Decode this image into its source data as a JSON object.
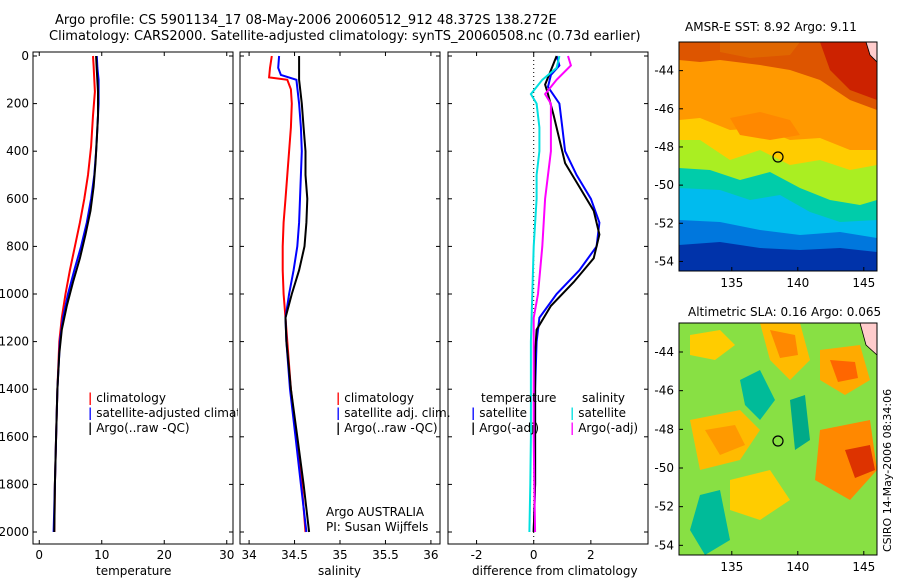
{
  "header": {
    "line1": "Argo profile: CS 5901134_17 08-May-2006 20060512_912 48.372S 138.272E",
    "line2": "Climatology: CARS2000. Satellite-adjusted climatology: synTS_20060508.nc (0.73d earlier)"
  },
  "credit": "CSIRO 14-May-2006 08:34:06",
  "chart_data": [
    {
      "type": "line",
      "xlabel": "temperature",
      "ylabel": "",
      "xlim": [
        -1,
        31
      ],
      "ylim": [
        2000,
        0
      ],
      "xticks": [
        0,
        10,
        20,
        30
      ],
      "yticks": [
        0,
        200,
        400,
        600,
        800,
        1000,
        1200,
        1400,
        1600,
        1800,
        2000
      ],
      "legend": [
        "climatology",
        "satellite-adjusted climatology",
        "Argo(..raw -QC)"
      ],
      "series": [
        {
          "name": "climatology",
          "color": "#ff0000",
          "points": [
            [
              8.6,
              0
            ],
            [
              8.7,
              40
            ],
            [
              8.8,
              100
            ],
            [
              8.9,
              150
            ],
            [
              8.6,
              250
            ],
            [
              8.3,
              380
            ],
            [
              7.8,
              500
            ],
            [
              7.2,
              600
            ],
            [
              6.5,
              700
            ],
            [
              5.7,
              800
            ],
            [
              4.9,
              900
            ],
            [
              4.2,
              1000
            ],
            [
              3.6,
              1100
            ],
            [
              3.2,
              1200
            ],
            [
              2.9,
              1400
            ],
            [
              2.7,
              1600
            ],
            [
              2.5,
              1800
            ],
            [
              2.4,
              2000
            ]
          ]
        },
        {
          "name": "satellite-adjusted climatology",
          "color": "#0000ff",
          "points": [
            [
              9.2,
              0
            ],
            [
              9.3,
              50
            ],
            [
              9.5,
              100
            ],
            [
              9.5,
              200
            ],
            [
              9.3,
              300
            ],
            [
              9.1,
              400
            ],
            [
              8.8,
              500
            ],
            [
              8.3,
              600
            ],
            [
              7.6,
              700
            ],
            [
              6.7,
              800
            ],
            [
              5.6,
              900
            ],
            [
              4.6,
              1000
            ],
            [
              3.8,
              1100
            ],
            [
              3.3,
              1200
            ],
            [
              2.9,
              1400
            ],
            [
              2.7,
              1600
            ],
            [
              2.5,
              1800
            ],
            [
              2.3,
              2000
            ]
          ]
        },
        {
          "name": "Argo(..raw -QC)",
          "color": "#000000",
          "points": [
            [
              9.1,
              0
            ],
            [
              9.2,
              60
            ],
            [
              9.4,
              150
            ],
            [
              9.4,
              250
            ],
            [
              9.2,
              350
            ],
            [
              9.0,
              450
            ],
            [
              8.7,
              550
            ],
            [
              8.2,
              650
            ],
            [
              7.4,
              750
            ],
            [
              6.5,
              850
            ],
            [
              5.4,
              950
            ],
            [
              4.4,
              1050
            ],
            [
              3.6,
              1150
            ],
            [
              3.2,
              1250
            ],
            [
              2.9,
              1400
            ],
            [
              2.7,
              1600
            ],
            [
              2.5,
              1800
            ],
            [
              2.4,
              2000
            ]
          ]
        }
      ]
    },
    {
      "type": "line",
      "xlabel": "salinity",
      "ylabel": "",
      "xlim": [
        33.9,
        36.1
      ],
      "ylim": [
        2000,
        0
      ],
      "xticks": [
        34,
        34.5,
        35,
        35.5,
        36
      ],
      "xticklabels": [
        "34",
        "34.5",
        "35",
        "35.5",
        "36"
      ],
      "legend": [
        "climatology",
        "satellite adj. clim.",
        "Argo(..raw -QC)"
      ],
      "annotation": [
        "Argo AUSTRALIA",
        "PI: Susan Wijffels"
      ],
      "series": [
        {
          "name": "climatology",
          "color": "#ff0000",
          "points": [
            [
              34.25,
              0
            ],
            [
              34.23,
              50
            ],
            [
              34.22,
              90
            ],
            [
              34.42,
              100
            ],
            [
              34.46,
              140
            ],
            [
              34.47,
              200
            ],
            [
              34.46,
              300
            ],
            [
              34.44,
              400
            ],
            [
              34.42,
              500
            ],
            [
              34.4,
              600
            ],
            [
              34.38,
              700
            ],
            [
              34.37,
              800
            ],
            [
              34.37,
              900
            ],
            [
              34.38,
              1000
            ],
            [
              34.4,
              1100
            ],
            [
              34.42,
              1200
            ],
            [
              34.46,
              1400
            ],
            [
              34.52,
              1600
            ],
            [
              34.58,
              1800
            ],
            [
              34.62,
              2000
            ]
          ]
        },
        {
          "name": "satellite adj. clim.",
          "color": "#0000ff",
          "points": [
            [
              34.33,
              0
            ],
            [
              34.32,
              50
            ],
            [
              34.35,
              80
            ],
            [
              34.52,
              100
            ],
            [
              34.55,
              200
            ],
            [
              34.57,
              300
            ],
            [
              34.58,
              400
            ],
            [
              34.57,
              500
            ],
            [
              34.56,
              600
            ],
            [
              34.55,
              700
            ],
            [
              34.53,
              800
            ],
            [
              34.49,
              900
            ],
            [
              34.44,
              1000
            ],
            [
              34.4,
              1100
            ],
            [
              34.41,
              1200
            ],
            [
              34.45,
              1400
            ],
            [
              34.51,
              1600
            ],
            [
              34.57,
              1800
            ],
            [
              34.63,
              2000
            ]
          ]
        },
        {
          "name": "Argo(..raw -QC)",
          "color": "#000000",
          "points": [
            [
              34.55,
              0
            ],
            [
              34.55,
              100
            ],
            [
              34.58,
              200
            ],
            [
              34.6,
              300
            ],
            [
              34.62,
              400
            ],
            [
              34.62,
              500
            ],
            [
              34.64,
              600
            ],
            [
              34.63,
              700
            ],
            [
              34.61,
              800
            ],
            [
              34.55,
              900
            ],
            [
              34.47,
              1000
            ],
            [
              34.4,
              1100
            ],
            [
              34.41,
              1200
            ],
            [
              34.46,
              1400
            ],
            [
              34.53,
              1600
            ],
            [
              34.6,
              1800
            ],
            [
              34.66,
              2000
            ]
          ]
        }
      ]
    },
    {
      "type": "line",
      "xlabel": "difference from climatology",
      "ylabel": "",
      "xlim": [
        -3,
        4
      ],
      "ylim": [
        2000,
        0
      ],
      "xticks": [
        -2,
        0,
        2
      ],
      "legend": {
        "temperature": [
          "satellite",
          "Argo(-adj)"
        ],
        "salinity": [
          "satellite",
          "Argo(-adj)"
        ]
      },
      "legend_headers": [
        "temperature",
        "salinity"
      ],
      "series": [
        {
          "name": "temperature satellite",
          "color": "#0000ff",
          "points": [
            [
              0.8,
              0
            ],
            [
              0.9,
              40
            ],
            [
              0.6,
              80
            ],
            [
              0.5,
              130
            ],
            [
              0.9,
              200
            ],
            [
              1.0,
              300
            ],
            [
              1.1,
              400
            ],
            [
              1.5,
              500
            ],
            [
              2.0,
              600
            ],
            [
              2.3,
              700
            ],
            [
              2.2,
              800
            ],
            [
              1.6,
              900
            ],
            [
              0.8,
              1000
            ],
            [
              0.2,
              1100
            ],
            [
              0.1,
              1200
            ],
            [
              0.05,
              1400
            ],
            [
              0.05,
              1600
            ],
            [
              0.05,
              1800
            ],
            [
              0.0,
              2000
            ]
          ]
        },
        {
          "name": "temperature Argo(-adj)",
          "color": "#000000",
          "points": [
            [
              0.8,
              0
            ],
            [
              0.6,
              60
            ],
            [
              0.4,
              120
            ],
            [
              0.5,
              160
            ],
            [
              0.7,
              250
            ],
            [
              0.9,
              350
            ],
            [
              1.1,
              450
            ],
            [
              1.6,
              550
            ],
            [
              2.1,
              650
            ],
            [
              2.3,
              750
            ],
            [
              2.1,
              850
            ],
            [
              1.4,
              950
            ],
            [
              0.6,
              1050
            ],
            [
              0.1,
              1150
            ],
            [
              0.05,
              1250
            ],
            [
              0.05,
              1400
            ],
            [
              0.05,
              1600
            ],
            [
              0.05,
              1800
            ],
            [
              0.0,
              2000
            ]
          ]
        },
        {
          "name": "salinity satellite",
          "color": "#00e0e0",
          "points": [
            [
              0.9,
              0
            ],
            [
              0.8,
              50
            ],
            [
              0.3,
              100
            ],
            [
              -0.1,
              160
            ],
            [
              0.1,
              200
            ],
            [
              0.2,
              300
            ],
            [
              0.2,
              400
            ],
            [
              0.1,
              500
            ],
            [
              0.1,
              600
            ],
            [
              0.0,
              800
            ],
            [
              -0.05,
              1000
            ],
            [
              -0.1,
              1200
            ],
            [
              -0.1,
              1400
            ],
            [
              -0.1,
              1600
            ],
            [
              -0.12,
              1800
            ],
            [
              -0.15,
              2000
            ]
          ]
        },
        {
          "name": "salinity Argo(-adj)",
          "color": "#ff00ff",
          "points": [
            [
              1.2,
              0
            ],
            [
              1.3,
              40
            ],
            [
              0.8,
              100
            ],
            [
              0.4,
              160
            ],
            [
              0.6,
              200
            ],
            [
              0.6,
              300
            ],
            [
              0.6,
              400
            ],
            [
              0.5,
              500
            ],
            [
              0.4,
              600
            ],
            [
              0.3,
              800
            ],
            [
              0.15,
              1000
            ],
            [
              0.0,
              1100
            ],
            [
              0.0,
              1200
            ],
            [
              0.0,
              1400
            ],
            [
              0.0,
              1600
            ],
            [
              0.02,
              1800
            ],
            [
              0.05,
              2000
            ]
          ]
        }
      ]
    },
    {
      "type": "heatmap",
      "title": "AMSR-E SST: 8.92  Argo: 9.11",
      "xlim": [
        131,
        146
      ],
      "ylim": [
        -54.5,
        -42.5
      ],
      "xticks": [
        135,
        140,
        145
      ],
      "yticks": [
        -44,
        -46,
        -48,
        -50,
        -52,
        -54
      ],
      "argo_position": [
        138.27,
        -48.37
      ],
      "colors": {
        "hot": "#cc2200",
        "warm": "#ff9900",
        "mid": "#aaee22",
        "cool": "#00ccdd",
        "cold": "#0033aa"
      }
    },
    {
      "type": "heatmap",
      "title": "Altimetric SLA: 0.16  Argo: 0.065",
      "xlim": [
        131,
        146
      ],
      "ylim": [
        -54.5,
        -42.5
      ],
      "xticks": [
        135,
        140,
        145
      ],
      "yticks": [
        -44,
        -46,
        -48,
        -50,
        -52,
        -54
      ],
      "argo_position": [
        138.27,
        -48.37
      ],
      "colors": {
        "base": "#88e044",
        "high": "#ff9900",
        "peak": "#dd3300",
        "low": "#00bb99"
      }
    }
  ]
}
